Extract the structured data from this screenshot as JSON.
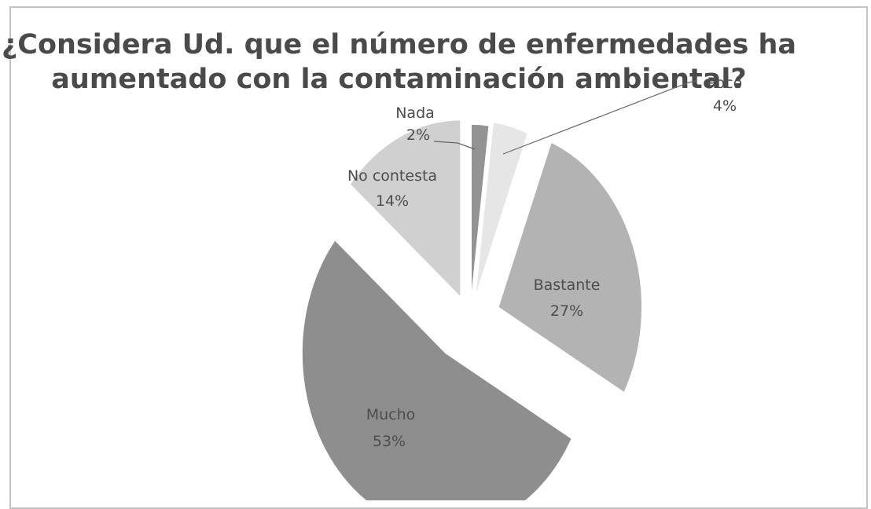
{
  "chart_data": {
    "type": "pie",
    "title_lines": [
      "¿Considera Ud. que el número de enfermedades ha",
      "aumentado con la contaminación ambiental?"
    ],
    "slices": [
      {
        "label": "Nada",
        "value": 2,
        "value_label": "2%",
        "color": "#939393"
      },
      {
        "label": "Poco",
        "value": 4,
        "value_label": "4%",
        "color": "#e6e6e6"
      },
      {
        "label": "Bastante",
        "value": 27,
        "value_label": "27%",
        "color": "#b3b3b3"
      },
      {
        "label": "Mucho",
        "value": 53,
        "value_label": "53%",
        "color": "#8e8e8e"
      },
      {
        "label": "No contesta",
        "value": 14,
        "value_label": "14%",
        "color": "#d0d0d0"
      }
    ],
    "exploded": true,
    "legend": "none"
  }
}
